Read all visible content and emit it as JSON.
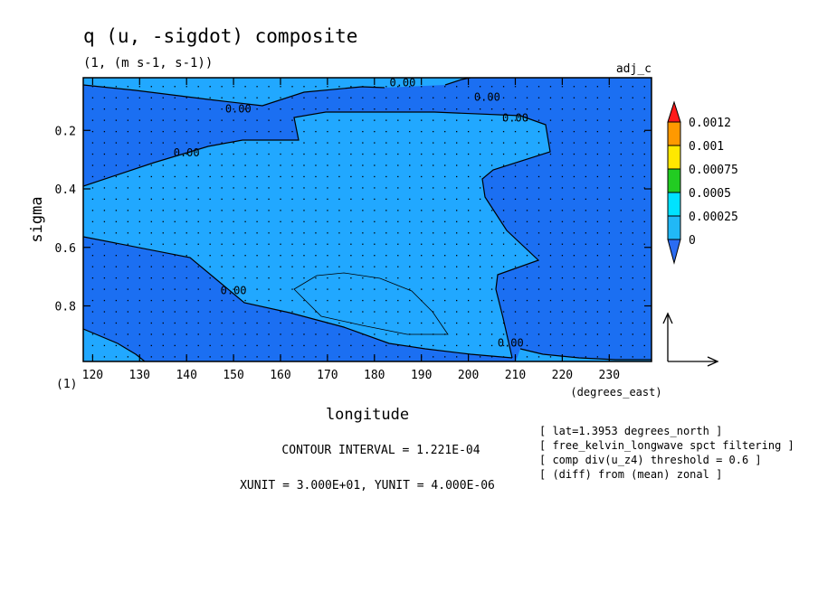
{
  "chart_data": {
    "type": "contour",
    "title": "q (u, -sigdot) composite",
    "subtitle": "(1, (m s-1, s-1))",
    "tag": "adj_c",
    "xlabel": "longitude",
    "ylabel": "sigma",
    "x_units_label": "(degrees_east)",
    "y_units_label": "(1)",
    "xlim": [
      118,
      239
    ],
    "ylim": [
      0.02,
      0.99
    ],
    "y_inverted": true,
    "x_ticks": [
      {
        "value": 120,
        "label": "120"
      },
      {
        "value": 130,
        "label": "130"
      },
      {
        "value": 140,
        "label": "140"
      },
      {
        "value": 150,
        "label": "150"
      },
      {
        "value": 160,
        "label": "160"
      },
      {
        "value": 170,
        "label": "170"
      },
      {
        "value": 180,
        "label": "180"
      },
      {
        "value": 190,
        "label": "190"
      },
      {
        "value": 200,
        "label": "200"
      },
      {
        "value": 210,
        "label": "210"
      },
      {
        "value": 220,
        "label": "220"
      },
      {
        "value": 230,
        "label": "230"
      }
    ],
    "y_ticks": [
      {
        "value": 0.2,
        "label": "0.2"
      },
      {
        "value": 0.4,
        "label": "0.4"
      },
      {
        "value": 0.6,
        "label": "0.6"
      },
      {
        "value": 0.8,
        "label": "0.8"
      }
    ],
    "contour_labels": [
      {
        "text": "0.00",
        "lon": 186,
        "sigma": 0.04
      },
      {
        "text": "0.00",
        "lon": 204,
        "sigma": 0.09
      },
      {
        "text": "0.00",
        "lon": 151,
        "sigma": 0.13
      },
      {
        "text": "0.00",
        "lon": 210,
        "sigma": 0.16
      },
      {
        "text": "0.00",
        "lon": 140,
        "sigma": 0.28
      },
      {
        "text": "0.00",
        "lon": 150,
        "sigma": 0.75
      },
      {
        "text": "0.00",
        "lon": 209,
        "sigma": 0.93
      }
    ],
    "legend": {
      "levels": [
        "0",
        "0.00025",
        "0.0005",
        "0.00075",
        "0.001",
        "0.0012"
      ],
      "colors": [
        "#2b6cf2",
        "#21b8f6",
        "#00e2ff",
        "#22cc22",
        "#ffe800",
        "#ff9900",
        "#ff1a1a"
      ]
    },
    "fill_colors": {
      "dark": "#1b6ff2",
      "light": "#21a8ff"
    },
    "info_lines": [
      "CONTOUR INTERVAL = 1.221E-04",
      "XUNIT = 3.000E+01, YUNIT = 4.000E-06"
    ],
    "notes": [
      "[ lat=1.3953 degrees_north ]",
      "[ free_kelvin_longwave spct filtering ]",
      "[ comp div(u_z4) threshold = 0.6 ]",
      "[ (diff) from (mean) zonal ]"
    ]
  }
}
